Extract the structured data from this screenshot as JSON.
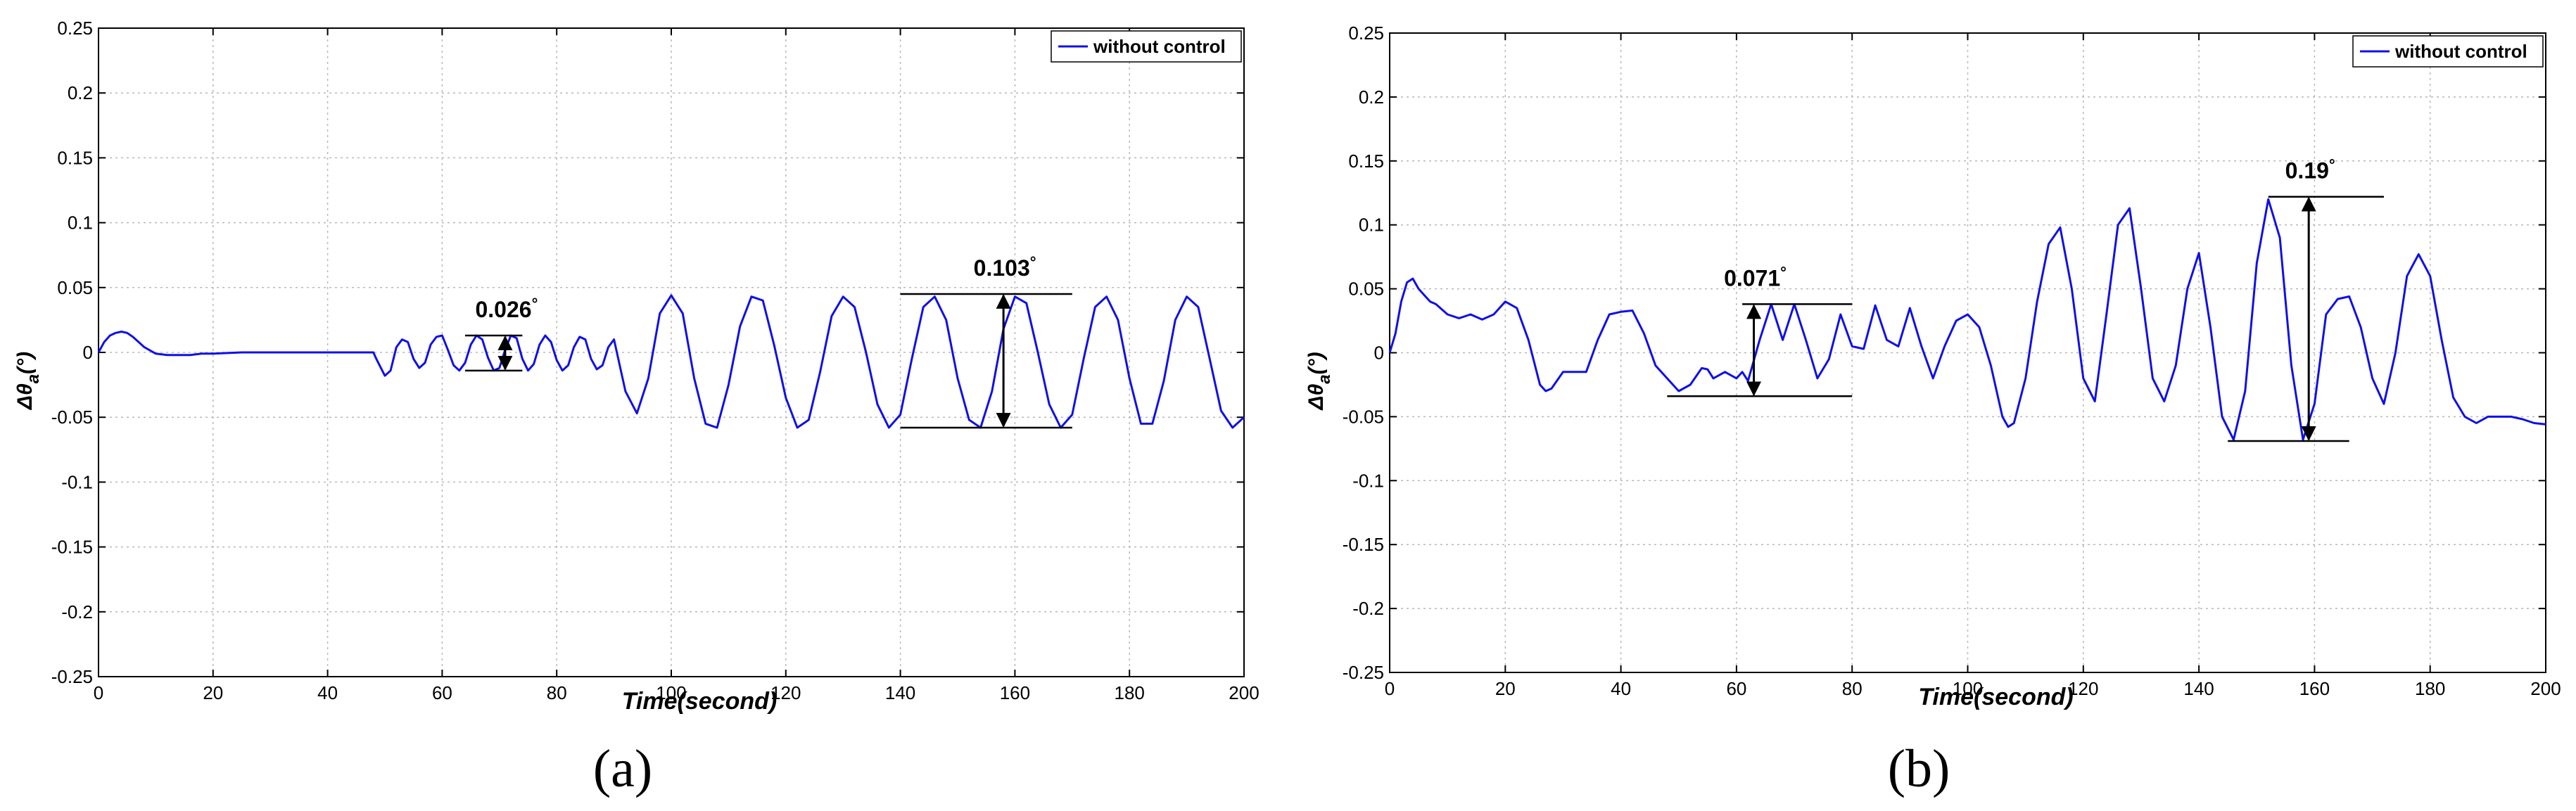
{
  "chart_data": [
    {
      "type": "line",
      "panel_label": "(a)",
      "xlabel": "Time(second)",
      "ylabel_main": "Δθ",
      "ylabel_sub": "a",
      "ylabel_unit": "(°)",
      "xlim": [
        0,
        200
      ],
      "ylim": [
        -0.25,
        0.25
      ],
      "xticks": [
        "0",
        "20",
        "40",
        "60",
        "80",
        "100",
        "120",
        "140",
        "160",
        "180",
        "200"
      ],
      "yticks": [
        "0.25",
        "0.2",
        "0.15",
        "0.1",
        "0.05",
        "0",
        "-0.05",
        "-0.1",
        "-0.15",
        "-0.2",
        "-0.25"
      ],
      "grid": true,
      "legend_position": "top-right",
      "color": "#1010e8",
      "series": [
        {
          "name": "without control",
          "x": [
            0,
            1,
            2,
            3,
            4,
            5,
            6,
            7,
            8,
            10,
            12,
            14,
            16,
            18,
            20,
            25,
            30,
            40,
            48,
            48.5,
            50,
            51,
            52,
            53,
            54,
            55,
            56,
            57,
            58,
            59,
            60,
            61,
            62,
            63,
            64,
            65,
            66,
            67,
            68,
            69,
            70,
            71,
            72,
            73,
            74,
            75,
            76,
            77,
            78,
            79,
            80,
            81,
            82,
            83,
            84,
            85,
            86,
            87,
            88,
            89,
            90,
            92,
            94,
            96,
            98,
            100,
            102,
            104,
            106,
            108,
            110,
            112,
            114,
            116,
            118,
            120,
            122,
            124,
            126,
            128,
            130,
            132,
            134,
            136,
            138,
            140,
            142,
            144,
            146,
            148,
            150,
            152,
            154,
            156,
            158,
            160,
            162,
            164,
            166,
            168,
            170,
            172,
            174,
            176,
            178,
            180,
            182,
            184,
            186,
            188,
            190,
            192,
            194,
            196,
            198,
            200
          ],
          "y": [
            0,
            0.008,
            0.013,
            0.015,
            0.016,
            0.015,
            0.012,
            0.008,
            0.004,
            -0.001,
            -0.002,
            -0.002,
            -0.002,
            -0.001,
            -0.001,
            0,
            0,
            0,
            0,
            -0.005,
            -0.018,
            -0.014,
            0.004,
            0.01,
            0.008,
            -0.005,
            -0.012,
            -0.008,
            0.006,
            0.012,
            0.013,
            0.002,
            -0.01,
            -0.014,
            -0.008,
            0.006,
            0.013,
            0.01,
            -0.004,
            -0.014,
            -0.012,
            0.002,
            0.013,
            0.011,
            -0.005,
            -0.014,
            -0.009,
            0.006,
            0.013,
            0.008,
            -0.006,
            -0.014,
            -0.01,
            0.004,
            0.012,
            0.01,
            -0.005,
            -0.013,
            -0.01,
            0.004,
            0.01,
            -0.03,
            -0.047,
            -0.02,
            0.03,
            0.044,
            0.03,
            -0.02,
            -0.055,
            -0.058,
            -0.025,
            0.02,
            0.043,
            0.04,
            0.005,
            -0.035,
            -0.058,
            -0.052,
            -0.015,
            0.028,
            0.043,
            0.035,
            0,
            -0.04,
            -0.058,
            -0.048,
            -0.005,
            0.035,
            0.043,
            0.025,
            -0.02,
            -0.052,
            -0.058,
            -0.03,
            0.018,
            0.043,
            0.038,
            0,
            -0.04,
            -0.058,
            -0.048,
            -0.005,
            0.035,
            0.043,
            0.025,
            -0.02,
            -0.055,
            -0.055,
            -0.022,
            0.025,
            0.043,
            0.035,
            -0.005,
            -0.045,
            -0.058,
            -0.05
          ]
        }
      ],
      "annotations": [
        {
          "text": "0.026",
          "degree": "°",
          "x": 71,
          "y_low": -0.014,
          "y_high": 0.013,
          "bar_x": [
            64,
            74
          ]
        },
        {
          "text": "0.103",
          "degree": "°",
          "x": 158,
          "y_low": -0.058,
          "y_high": 0.045,
          "bar_x": [
            140,
            170
          ]
        }
      ]
    },
    {
      "type": "line",
      "panel_label": "(b)",
      "xlabel": "Time(second)",
      "ylabel_main": "Δθ",
      "ylabel_sub": "a",
      "ylabel_unit": "(°)",
      "xlim": [
        0,
        200
      ],
      "ylim": [
        -0.25,
        0.25
      ],
      "xticks": [
        "0",
        "20",
        "40",
        "60",
        "80",
        "100",
        "120",
        "140",
        "160",
        "180",
        "200"
      ],
      "yticks": [
        "0.25",
        "0.2",
        "0.15",
        "0.1",
        "0.05",
        "0",
        "-0.05",
        "-0.1",
        "-0.15",
        "-0.2",
        "-0.25"
      ],
      "grid": true,
      "legend_position": "top-right",
      "color": "#1010e8",
      "series": [
        {
          "name": "without control",
          "x": [
            0,
            1,
            2,
            3,
            4,
            5,
            6,
            7,
            8,
            10,
            12,
            14,
            16,
            18,
            20,
            22,
            24,
            26,
            27,
            28,
            30,
            32,
            34,
            36,
            38,
            40,
            42,
            44,
            46,
            48,
            50,
            52,
            54,
            55,
            56,
            58,
            60,
            61,
            62,
            64,
            66,
            68,
            70,
            72,
            74,
            76,
            78,
            80,
            82,
            84,
            86,
            88,
            90,
            92,
            94,
            96,
            98,
            100,
            102,
            104,
            106,
            107,
            108,
            110,
            112,
            114,
            116,
            118,
            120,
            122,
            124,
            126,
            128,
            130,
            132,
            134,
            136,
            138,
            140,
            142,
            144,
            146,
            148,
            150,
            152,
            154,
            156,
            158,
            160,
            162,
            164,
            166,
            168,
            170,
            172,
            174,
            176,
            178,
            180,
            182,
            184,
            186,
            188,
            190,
            192,
            194,
            196,
            198,
            200
          ],
          "y": [
            0,
            0.015,
            0.04,
            0.055,
            0.058,
            0.05,
            0.045,
            0.04,
            0.038,
            0.03,
            0.027,
            0.03,
            0.026,
            0.03,
            0.04,
            0.035,
            0.01,
            -0.025,
            -0.03,
            -0.028,
            -0.015,
            -0.015,
            -0.015,
            0.01,
            0.03,
            0.032,
            0.033,
            0.015,
            -0.01,
            -0.02,
            -0.03,
            -0.025,
            -0.012,
            -0.013,
            -0.02,
            -0.015,
            -0.02,
            -0.015,
            -0.022,
            0.01,
            0.038,
            0.01,
            0.038,
            0.01,
            -0.02,
            -0.005,
            0.03,
            0.005,
            0.003,
            0.037,
            0.01,
            0.005,
            0.035,
            0.005,
            -0.02,
            0.005,
            0.025,
            0.03,
            0.02,
            -0.01,
            -0.05,
            -0.058,
            -0.055,
            -0.02,
            0.04,
            0.085,
            0.098,
            0.05,
            -0.02,
            -0.038,
            0.03,
            0.1,
            0.113,
            0.05,
            -0.02,
            -0.038,
            -0.01,
            0.05,
            0.078,
            0.02,
            -0.05,
            -0.068,
            -0.03,
            0.07,
            0.12,
            0.09,
            -0.01,
            -0.068,
            -0.04,
            0.03,
            0.042,
            0.044,
            0.02,
            -0.02,
            -0.04,
            0.0,
            0.06,
            0.077,
            0.06,
            0.01,
            -0.035,
            -0.05,
            -0.055,
            -0.05,
            -0.05,
            -0.05,
            -0.052,
            -0.055,
            -0.056
          ]
        }
      ],
      "annotations": [
        {
          "text": "0.071",
          "degree": "°",
          "x": 63,
          "y_low": -0.034,
          "y_high": 0.038,
          "bar_x": [
            48,
            80
          ],
          "bar_x_top": [
            61,
            80
          ]
        },
        {
          "text": "0.19",
          "degree": "°",
          "x": 159,
          "y_low": -0.069,
          "y_high": 0.122,
          "bar_x": [
            145,
            166
          ],
          "bar_x_top": [
            152,
            172
          ]
        }
      ]
    }
  ]
}
